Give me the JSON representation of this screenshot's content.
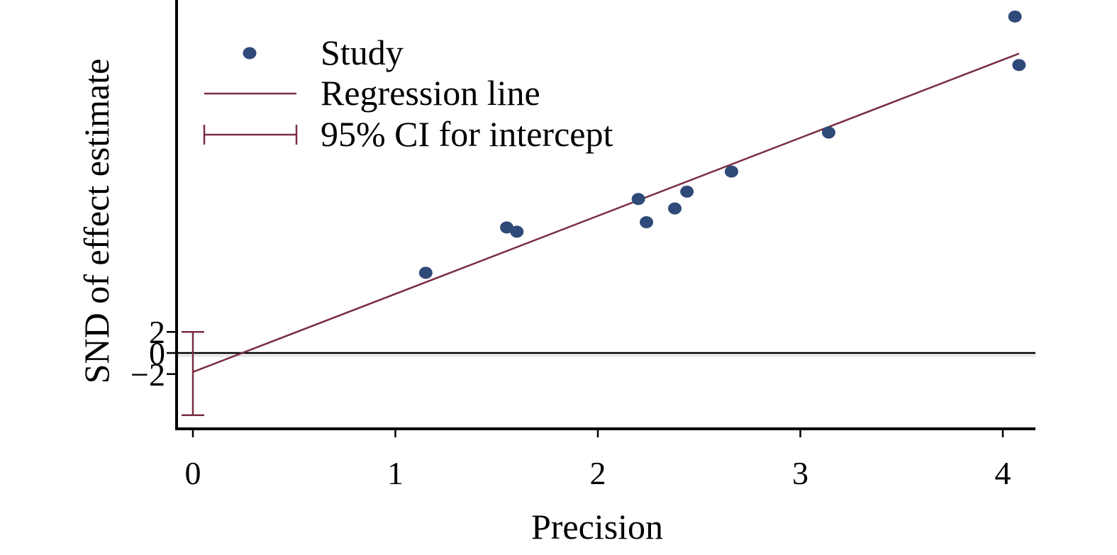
{
  "chart_data": {
    "type": "scatter",
    "title": "",
    "xlabel": "Precision",
    "ylabel": "SND of effect estimate",
    "xlim": [
      0,
      4.1
    ],
    "ylim": [
      -7,
      34
    ],
    "x_ticks": [
      {
        "value": 0,
        "label": "0"
      },
      {
        "value": 1,
        "label": "1"
      },
      {
        "value": 2,
        "label": "2"
      },
      {
        "value": 3,
        "label": "3"
      },
      {
        "value": 4,
        "label": "4"
      }
    ],
    "y_ticks": [
      {
        "value": 2,
        "label": "2"
      },
      {
        "value": 0,
        "label": "0"
      },
      {
        "value": -2,
        "label": "−2"
      }
    ],
    "grid": false,
    "reference_line_y": 0,
    "legend": {
      "position": "top-left",
      "entries": [
        {
          "key": "study",
          "label": "Study"
        },
        {
          "key": "regression",
          "label": "Regression line"
        },
        {
          "key": "ci",
          "label": "95% CI for intercept"
        }
      ]
    },
    "series": [
      {
        "name": "Study",
        "points": [
          {
            "x": 1.15,
            "y": 7.6
          },
          {
            "x": 1.55,
            "y": 11.9
          },
          {
            "x": 1.6,
            "y": 11.5
          },
          {
            "x": 2.2,
            "y": 14.6
          },
          {
            "x": 2.24,
            "y": 12.4
          },
          {
            "x": 2.38,
            "y": 13.7
          },
          {
            "x": 2.44,
            "y": 15.3
          },
          {
            "x": 2.66,
            "y": 17.2
          },
          {
            "x": 3.14,
            "y": 20.9
          },
          {
            "x": 4.06,
            "y": 31.9
          },
          {
            "x": 4.08,
            "y": 27.3
          }
        ]
      },
      {
        "name": "Regression line",
        "intercept": -1.8,
        "slope": 7.4,
        "x_range": [
          0,
          4.08
        ]
      },
      {
        "name": "95% CI for intercept",
        "x": 0,
        "lower": -5.9,
        "upper": 2.0
      }
    ],
    "colors": {
      "points": "#2f4a78",
      "regression": "#7a2e40",
      "axis": "#000000",
      "zero_line": "#000000"
    }
  }
}
